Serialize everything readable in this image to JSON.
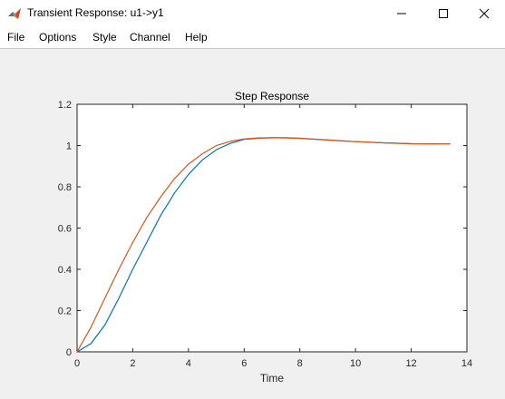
{
  "window": {
    "title": "Transient Response: u1->y1",
    "minimize_icon": "minimize-icon",
    "maximize_icon": "maximize-icon",
    "close_icon": "close-icon"
  },
  "menu": [
    "File",
    "Options",
    "Style",
    "Channel",
    "Help"
  ],
  "colors": {
    "series_1": "#0072bd",
    "series_2": "#d95319",
    "axes_bg": "#ffffff",
    "figure_bg": "#f0f0f0"
  },
  "chart_data": {
    "type": "line",
    "title": "Step Response",
    "xlabel": "Time",
    "ylabel": "",
    "xlim": [
      0,
      14
    ],
    "ylim": [
      0,
      1.2
    ],
    "xticks": [
      "0",
      "2",
      "4",
      "6",
      "8",
      "10",
      "12",
      "14"
    ],
    "yticks": [
      "0",
      "0.2",
      "0.4",
      "0.6",
      "0.8",
      "1",
      "1.2"
    ],
    "grid": false,
    "series": [
      {
        "color": "#0072bd",
        "x": [
          0,
          0.5,
          1,
          1.5,
          2,
          2.5,
          3,
          3.5,
          4,
          4.5,
          5,
          5.5,
          6,
          6.5,
          7,
          7.5,
          8,
          9,
          10,
          11,
          12,
          13,
          13.4
        ],
        "y": [
          0,
          0.04,
          0.13,
          0.26,
          0.4,
          0.53,
          0.66,
          0.77,
          0.86,
          0.93,
          0.98,
          1.01,
          1.03,
          1.035,
          1.038,
          1.038,
          1.035,
          1.027,
          1.019,
          1.013,
          1.009,
          1.008,
          1.008
        ]
      },
      {
        "color": "#d95319",
        "x": [
          0,
          0.5,
          1,
          1.5,
          2,
          2.5,
          3,
          3.5,
          4,
          4.5,
          5,
          5.5,
          6,
          6.5,
          7,
          7.5,
          8,
          9,
          10,
          11,
          12,
          13,
          13.4
        ],
        "y": [
          0,
          0.12,
          0.26,
          0.4,
          0.53,
          0.65,
          0.75,
          0.84,
          0.91,
          0.96,
          1.0,
          1.02,
          1.032,
          1.037,
          1.038,
          1.037,
          1.035,
          1.027,
          1.019,
          1.013,
          1.009,
          1.008,
          1.008
        ]
      }
    ]
  }
}
